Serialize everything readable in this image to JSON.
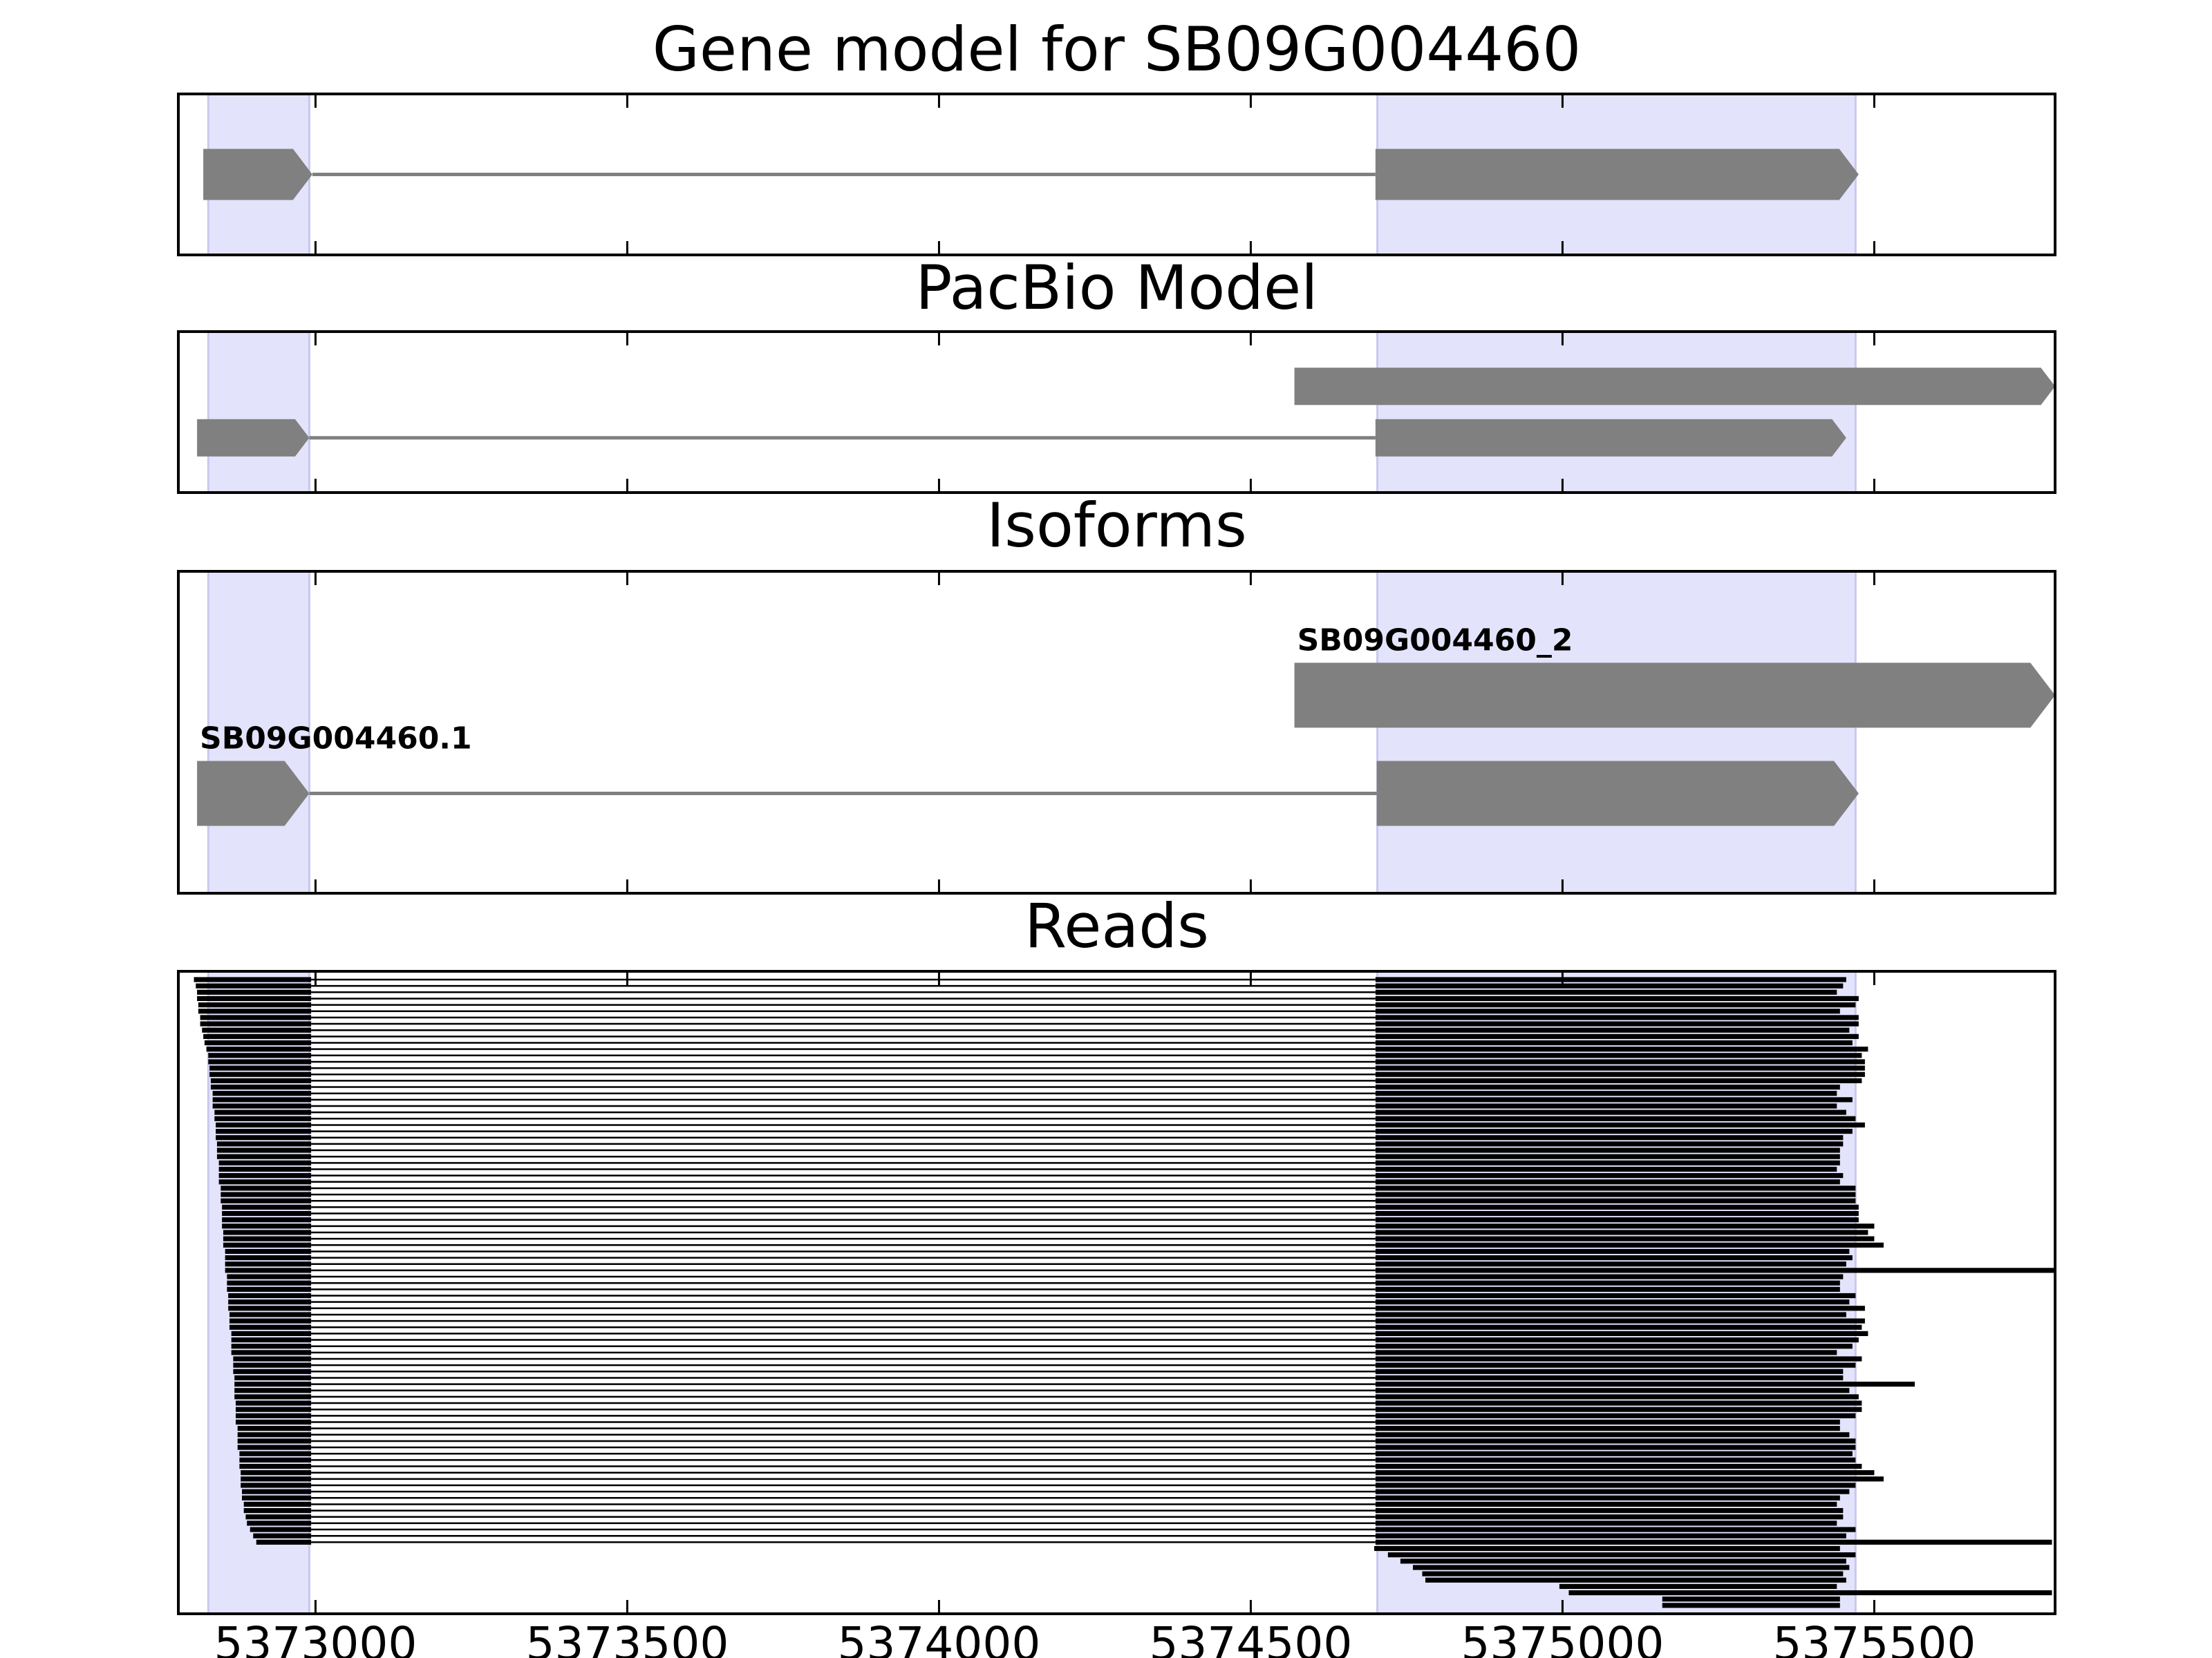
{
  "chart_data": {
    "type": "genome",
    "xlim": [
      5372780,
      5375790
    ],
    "xticks": [
      5373000,
      5373500,
      5374000,
      5374500,
      5375000,
      5375500
    ],
    "highlights": [
      [
        5372828,
        5372990
      ],
      [
        5374703,
        5375470
      ]
    ],
    "highlight_color": "#e3e3fc",
    "feature_color": "#808080",
    "read_color": "#000000",
    "panels": [
      {
        "title": "Gene model for SB09G004460",
        "features": [
          {
            "blocks": [
              [
                5372820,
                5372995
              ],
              [
                5374700,
                5375475
              ]
            ]
          }
        ]
      },
      {
        "title": "PacBio Model",
        "features": [
          {
            "blocks": [
              [
                5374570,
                5375790
              ]
            ]
          },
          {
            "blocks": [
              [
                5372810,
                5372990
              ],
              [
                5374700,
                5375455
              ]
            ]
          }
        ]
      },
      {
        "title": "Isoforms",
        "features": [
          {
            "label": "SB09G004460_2",
            "blocks": [
              [
                5374570,
                5375790
              ]
            ]
          },
          {
            "label": "SB09G004460.1",
            "blocks": [
              [
                5372810,
                5372990
              ],
              [
                5374702,
                5375475
              ]
            ]
          }
        ]
      },
      {
        "title": "Reads",
        "reads": [
          [
            5372805,
            5372993,
            5374700,
            5375455
          ],
          [
            5372808,
            5372993,
            5374700,
            5375450
          ],
          [
            5372810,
            5372993,
            5374700,
            5375440
          ],
          [
            5372810,
            5372993,
            5374700,
            5375475
          ],
          [
            5372812,
            5372993,
            5374700,
            5375470
          ],
          [
            5372812,
            5372993,
            5374700,
            5375445
          ],
          [
            5372815,
            5372993,
            5374700,
            5375475
          ],
          [
            5372815,
            5372993,
            5374700,
            5375475
          ],
          [
            5372818,
            5372993,
            5374700,
            5375460
          ],
          [
            5372820,
            5372993,
            5374700,
            5375475
          ],
          [
            5372822,
            5372993,
            5374700,
            5375465
          ],
          [
            5372825,
            5372993,
            5374700,
            5375490
          ],
          [
            5372828,
            5372993,
            5374700,
            5375480
          ],
          [
            5372828,
            5372993,
            5374700,
            5375485
          ],
          [
            5372830,
            5372993,
            5374700,
            5375485
          ],
          [
            5372830,
            5372993,
            5374700,
            5375485
          ],
          [
            5372832,
            5372993,
            5374700,
            5375480
          ],
          [
            5372832,
            5372993,
            5374700,
            5375445
          ],
          [
            5372835,
            5372993,
            5374700,
            5375440
          ],
          [
            5372835,
            5372993,
            5374700,
            5375465
          ],
          [
            5372835,
            5372993,
            5374700,
            5375440
          ],
          [
            5372838,
            5372993,
            5374700,
            5375455
          ],
          [
            5372838,
            5372993,
            5374700,
            5375470
          ],
          [
            5372840,
            5372993,
            5374700,
            5375485
          ],
          [
            5372840,
            5372993,
            5374700,
            5375465
          ],
          [
            5372840,
            5372993,
            5374700,
            5375450
          ],
          [
            5372842,
            5372993,
            5374700,
            5375450
          ],
          [
            5372842,
            5372993,
            5374700,
            5375445
          ],
          [
            5372842,
            5372993,
            5374700,
            5375445
          ],
          [
            5372845,
            5372993,
            5374700,
            5375445
          ],
          [
            5372845,
            5372993,
            5374700,
            5375440
          ],
          [
            5372845,
            5372993,
            5374700,
            5375450
          ],
          [
            5372845,
            5372993,
            5374700,
            5375445
          ],
          [
            5372848,
            5372993,
            5374700,
            5375470
          ],
          [
            5372848,
            5372993,
            5374700,
            5375470
          ],
          [
            5372848,
            5372993,
            5374700,
            5375470
          ],
          [
            5372850,
            5372993,
            5374700,
            5375475
          ],
          [
            5372850,
            5372993,
            5374700,
            5375475
          ],
          [
            5372850,
            5372993,
            5374700,
            5375475
          ],
          [
            5372850,
            5372993,
            5374700,
            5375500
          ],
          [
            5372852,
            5372993,
            5374700,
            5375490
          ],
          [
            5372852,
            5372993,
            5374700,
            5375500
          ],
          [
            5372852,
            5372993,
            5374700,
            5375515
          ],
          [
            5372855,
            5372993,
            5374700,
            5375460
          ],
          [
            5372855,
            5372993,
            5374700,
            5375465
          ],
          [
            5372855,
            5372993,
            5374700,
            5375455
          ],
          [
            5372855,
            5372993,
            5374700,
            5375790
          ],
          [
            5372858,
            5372993,
            5374700,
            5375450
          ],
          [
            5372858,
            5372993,
            5374700,
            5375445
          ],
          [
            5372858,
            5372993,
            5374700,
            5375445
          ],
          [
            5372860,
            5372993,
            5374700,
            5375470
          ],
          [
            5372860,
            5372993,
            5374700,
            5375460
          ],
          [
            5372860,
            5372993,
            5374700,
            5375485
          ],
          [
            5372862,
            5372993,
            5374700,
            5375455
          ],
          [
            5372862,
            5372993,
            5374700,
            5375485
          ],
          [
            5372862,
            5372993,
            5374700,
            5375480
          ],
          [
            5372865,
            5372993,
            5374700,
            5375490
          ],
          [
            5372865,
            5372993,
            5374700,
            5375475
          ],
          [
            5372865,
            5372993,
            5374700,
            5375465
          ],
          [
            5372865,
            5372993,
            5374700,
            5375440
          ],
          [
            5372868,
            5372993,
            5374700,
            5375480
          ],
          [
            5372868,
            5372993,
            5374700,
            5375470
          ],
          [
            5372868,
            5372993,
            5374700,
            5375450
          ],
          [
            5372870,
            5372993,
            5374700,
            5375450
          ],
          [
            5372870,
            5372993,
            5374700,
            5375565
          ],
          [
            5372870,
            5372993,
            5374700,
            5375460
          ],
          [
            5372870,
            5372993,
            5374700,
            5375475
          ],
          [
            5372872,
            5372993,
            5374700,
            5375480
          ],
          [
            5372872,
            5372993,
            5374700,
            5375480
          ],
          [
            5372872,
            5372993,
            5374700,
            5375470
          ],
          [
            5372872,
            5372993,
            5374700,
            5375445
          ],
          [
            5372875,
            5372993,
            5374700,
            5375445
          ],
          [
            5372875,
            5372993,
            5374700,
            5375460
          ],
          [
            5372875,
            5372993,
            5374700,
            5375470
          ],
          [
            5372875,
            5372993,
            5374700,
            5375470
          ],
          [
            5372878,
            5372993,
            5374700,
            5375465
          ],
          [
            5372878,
            5372993,
            5374700,
            5375470
          ],
          [
            5372878,
            5372993,
            5374700,
            5375480
          ],
          [
            5372880,
            5372993,
            5374700,
            5375500
          ],
          [
            5372880,
            5372993,
            5374700,
            5375515
          ],
          [
            5372880,
            5372993,
            5374700,
            5375470
          ],
          [
            5372882,
            5372993,
            5374700,
            5375460
          ],
          [
            5372882,
            5372993,
            5374700,
            5375445
          ],
          [
            5372885,
            5372993,
            5374700,
            5375440
          ],
          [
            5372885,
            5372993,
            5374700,
            5375450
          ],
          [
            5372888,
            5372993,
            5374700,
            5375450
          ],
          [
            5372890,
            5372993,
            5374700,
            5375440
          ],
          [
            5372895,
            5372993,
            5374700,
            5375470
          ],
          [
            5372900,
            5372993,
            5374700,
            5375455
          ],
          [
            5372905,
            5372993,
            5374700,
            5375785
          ],
          [
            5374698,
            5375445
          ],
          [
            5374720,
            5375470
          ],
          [
            5374740,
            5375455
          ],
          [
            5374760,
            5375460
          ],
          [
            5374775,
            5375450
          ],
          [
            5374780,
            5375455
          ],
          [
            5374995,
            5375440
          ],
          [
            5375010,
            5375785
          ],
          [
            5375160,
            5375445
          ],
          [
            5375160,
            5375445
          ]
        ]
      }
    ]
  }
}
